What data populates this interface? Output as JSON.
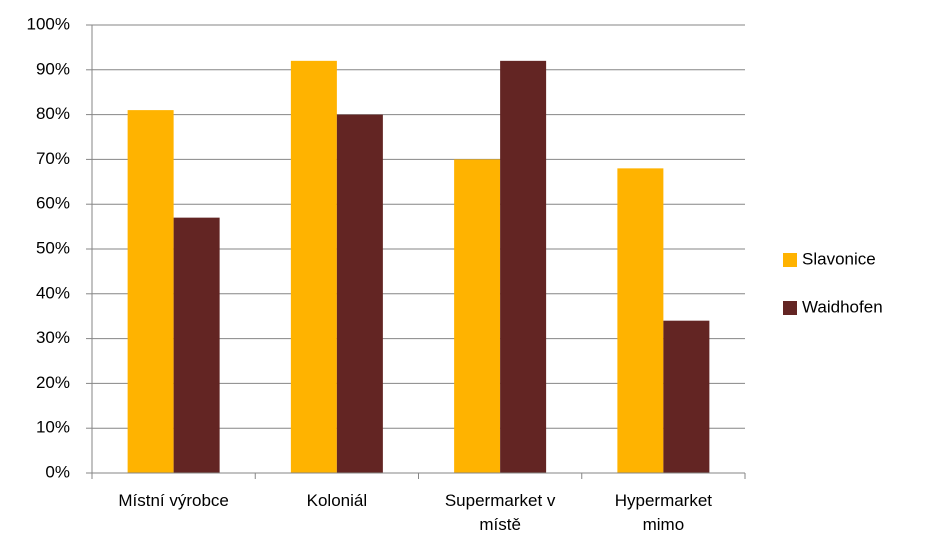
{
  "chart_data": {
    "type": "bar",
    "categories": [
      "Místní výrobce",
      "Koloniál",
      "Supermarket v místě",
      "Hypermarket mimo"
    ],
    "series": [
      {
        "name": "Slavonice",
        "color": "#ffb300",
        "values": [
          81,
          92,
          70,
          68
        ]
      },
      {
        "name": "Waidhofen",
        "color": "#632523",
        "values": [
          57,
          80,
          92,
          34
        ]
      }
    ],
    "ylim": [
      0,
      100
    ],
    "yticks": [
      {
        "value": 0,
        "label": "0%"
      },
      {
        "value": 10,
        "label": "10%"
      },
      {
        "value": 20,
        "label": "20%"
      },
      {
        "value": 30,
        "label": "30%"
      },
      {
        "value": 40,
        "label": "40%"
      },
      {
        "value": 50,
        "label": "50%"
      },
      {
        "value": 60,
        "label": "60%"
      },
      {
        "value": 70,
        "label": "70%"
      },
      {
        "value": 80,
        "label": "80%"
      },
      {
        "value": 90,
        "label": "90%"
      },
      {
        "value": 100,
        "label": "100%"
      }
    ],
    "grid": true,
    "legend": "right"
  }
}
